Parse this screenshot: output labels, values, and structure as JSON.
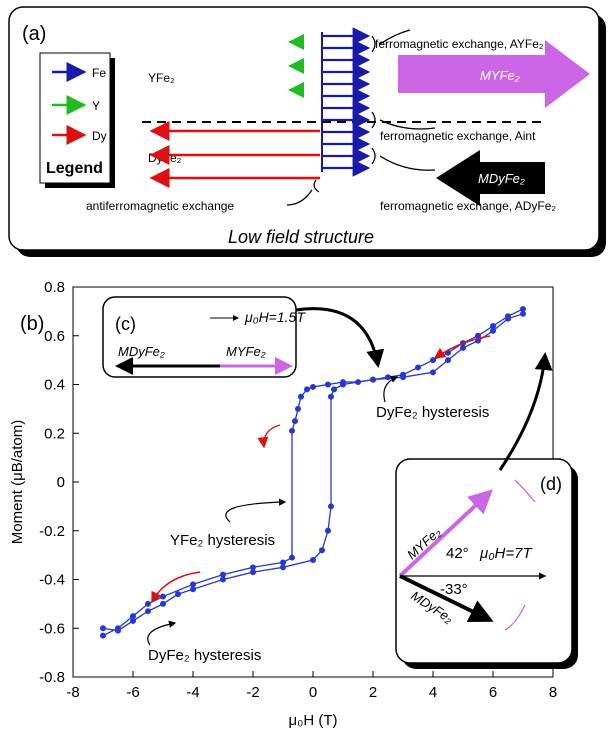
{
  "panel_a": {
    "label": "(a)",
    "legend": {
      "items": [
        "Fe",
        "Y",
        "Dy"
      ],
      "title": "Legend"
    },
    "layers": [
      "YFe₂",
      "DyFe₂"
    ],
    "exchange": [
      "ferromagnetic exchange, AYFe₂",
      "ferromagnetic exchange, Aint",
      "ferromagnetic exchange, ADyFe₂",
      "antiferromagnetic exchange"
    ],
    "moments": [
      "MYFe₂",
      "MDyFe₂"
    ],
    "caption": "Low field structure"
  },
  "chart_data": {
    "type": "line",
    "xlabel": "μ₀H (T)",
    "ylabel": "Moment (μB/atom)",
    "xlim": [
      -8,
      8
    ],
    "xticks": [
      -8,
      -6,
      -4,
      -2,
      0,
      2,
      4,
      6,
      8
    ],
    "ylim": [
      -0.8,
      0.8
    ],
    "yticks": [
      -0.8,
      -0.6,
      -0.4,
      -0.2,
      0,
      0.2,
      0.4,
      0.6,
      0.8
    ],
    "series": [
      {
        "color": "#2438d6",
        "x": [
          7,
          6.5,
          6,
          5.5,
          5,
          4.5,
          4,
          3.5,
          3,
          2.5,
          2,
          1.5,
          1,
          0.5,
          0,
          -0.2,
          -0.4,
          -0.5,
          -0.6,
          -0.7,
          -0.7,
          -1,
          -2,
          -3,
          -4,
          -5,
          -5.5,
          -6,
          -6.5,
          -7
        ],
        "values": [
          0.71,
          0.68,
          0.64,
          0.6,
          0.57,
          0.53,
          0.5,
          0.47,
          0.44,
          0.43,
          0.42,
          0.41,
          0.41,
          0.4,
          0.39,
          0.38,
          0.35,
          0.3,
          0.25,
          0.21,
          -0.31,
          -0.33,
          -0.35,
          -0.38,
          -0.42,
          -0.47,
          -0.5,
          -0.55,
          -0.6,
          -0.63
        ]
      },
      {
        "color": "#2438d6",
        "x": [
          -7,
          -6.5,
          -6,
          -5.5,
          -5,
          -4.5,
          -4,
          -3,
          -2,
          -1,
          0,
          0.3,
          0.5,
          0.6,
          0.6,
          0.7,
          1,
          2,
          3,
          4,
          4.5,
          5,
          5.5,
          6,
          6.5,
          7
        ],
        "values": [
          -0.6,
          -0.61,
          -0.57,
          -0.53,
          -0.5,
          -0.46,
          -0.44,
          -0.4,
          -0.37,
          -0.35,
          -0.32,
          -0.28,
          -0.2,
          -0.1,
          0.35,
          0.38,
          0.4,
          0.42,
          0.43,
          0.45,
          0.5,
          0.55,
          0.58,
          0.62,
          0.67,
          0.69
        ]
      }
    ],
    "annotations": [
      "(b)",
      "DyFe₂ hysteresis",
      "YFe₂ hysteresis",
      "DyFe₂ hysteresis"
    ],
    "insets": {
      "c": {
        "label": "(c)",
        "field": "μ₀H=1.5T",
        "moments": [
          "MDyFe₂",
          "MYFe₂"
        ]
      },
      "d": {
        "label": "(d)",
        "field": "μ₀H=7T",
        "angles": [
          "42°",
          "-33°"
        ],
        "moments": [
          "MYFe₂",
          "MDyFe₂"
        ]
      }
    }
  }
}
